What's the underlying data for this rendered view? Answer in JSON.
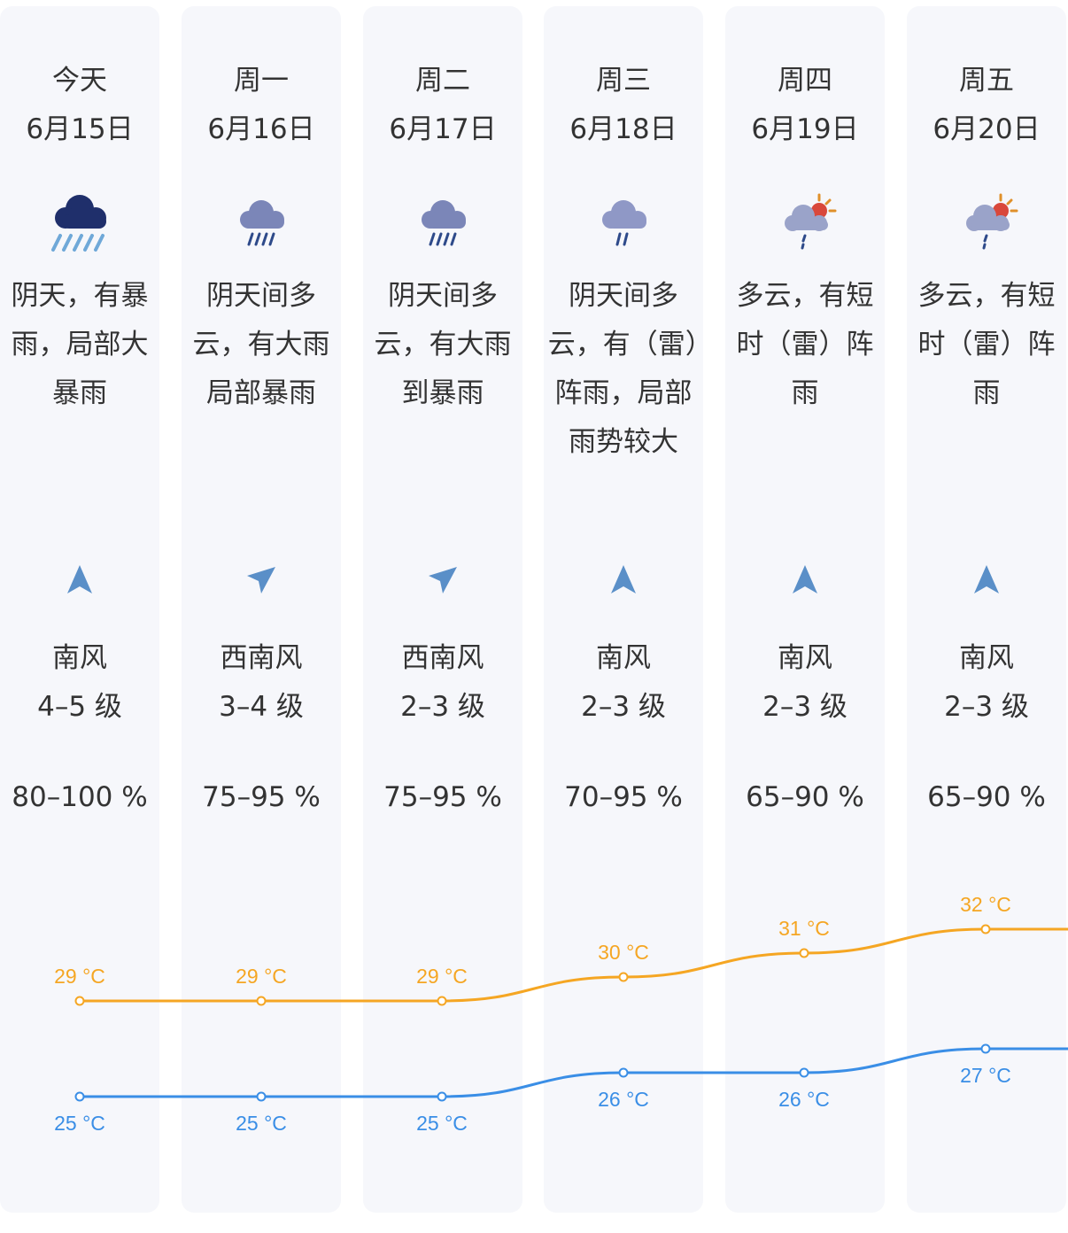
{
  "forecast": {
    "days": [
      {
        "day": "今天",
        "date": "6月15日",
        "icon": "heavy-rain-cloud-icon",
        "description": "阴天，有暴雨，局部大暴雨",
        "wind_icon": "north-arrow-icon",
        "wind_direction": "南风",
        "wind_level": "4–5 级",
        "humidity": "80–100 %"
      },
      {
        "day": "周一",
        "date": "6月16日",
        "icon": "rain-cloud-icon",
        "description": "阴天间多云，有大雨局部暴雨",
        "wind_icon": "northeast-arrow-icon",
        "wind_direction": "西南风",
        "wind_level": "3–4 级",
        "humidity": "75–95 %"
      },
      {
        "day": "周二",
        "date": "6月17日",
        "icon": "rain-cloud-icon",
        "description": "阴天间多云，有大雨到暴雨",
        "wind_icon": "northeast-arrow-icon",
        "wind_direction": "西南风",
        "wind_level": "2–3 级",
        "humidity": "75–95 %"
      },
      {
        "day": "周三",
        "date": "6月18日",
        "icon": "light-rain-cloud-icon",
        "description": "阴天间多云，有（雷）阵雨，局部雨势较大",
        "wind_icon": "north-arrow-icon",
        "wind_direction": "南风",
        "wind_level": "2–3 级",
        "humidity": "70–95 %"
      },
      {
        "day": "周四",
        "date": "6月19日",
        "icon": "sun-cloud-shower-icon",
        "description": "多云，有短时（雷）阵雨",
        "wind_icon": "north-arrow-icon",
        "wind_direction": "南风",
        "wind_level": "2–3 级",
        "humidity": "65–90 %"
      },
      {
        "day": "周五",
        "date": "6月20日",
        "icon": "sun-cloud-shower-icon",
        "description": "多云，有短时（雷）阵雨",
        "wind_icon": "north-arrow-icon",
        "wind_direction": "南风",
        "wind_level": "2–3 级",
        "humidity": "65–90 %"
      }
    ]
  },
  "chart_data": {
    "type": "line",
    "categories": [
      "6月15日",
      "6月16日",
      "6月17日",
      "6月18日",
      "6月19日",
      "6月20日"
    ],
    "unit": "°C",
    "series": [
      {
        "values": [
          29,
          29,
          29,
          30,
          31,
          32
        ],
        "color": "#f5a623"
      },
      {
        "values": [
          25,
          25,
          25,
          26,
          26,
          27
        ],
        "color": "#3a8ee6"
      }
    ],
    "labels": {
      "high": [
        "29 °C",
        "29 °C",
        "29 °C",
        "30 °C",
        "31 °C",
        "32 °C"
      ],
      "low": [
        "25 °C",
        "25 °C",
        "25 °C",
        "26 °C",
        "26 °C",
        "27 °C"
      ]
    },
    "grid": false
  }
}
